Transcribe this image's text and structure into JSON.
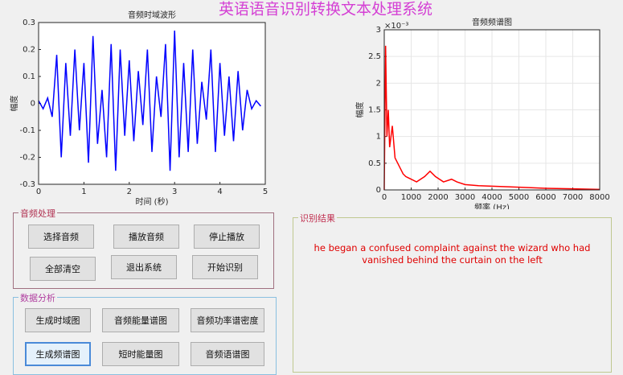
{
  "title": "英语语音识别转换文本处理系统",
  "chart_data": [
    {
      "type": "line",
      "title": "音频时域波形",
      "xlabel": "时间 (秒)",
      "ylabel": "幅度",
      "grid": false,
      "x": [
        0,
        0.1,
        0.2,
        0.3,
        0.4,
        0.5,
        0.6,
        0.7,
        0.8,
        0.9,
        1.0,
        1.1,
        1.2,
        1.3,
        1.4,
        1.5,
        1.6,
        1.7,
        1.8,
        1.9,
        2.0,
        2.1,
        2.2,
        2.3,
        2.4,
        2.5,
        2.6,
        2.7,
        2.8,
        2.9,
        3.0,
        3.1,
        3.2,
        3.3,
        3.4,
        3.5,
        3.6,
        3.7,
        3.8,
        3.9,
        4.0,
        4.1,
        4.2,
        4.3,
        4.4,
        4.5,
        4.6,
        4.7,
        4.8,
        4.9
      ],
      "series": [
        {
          "color": "#0000ff",
          "values": [
            0.01,
            -0.02,
            0.02,
            -0.05,
            0.18,
            -0.2,
            0.15,
            -0.12,
            0.2,
            -0.1,
            0.15,
            -0.22,
            0.25,
            -0.15,
            0.05,
            -0.2,
            0.22,
            -0.25,
            0.2,
            -0.12,
            0.16,
            -0.14,
            0.12,
            -0.08,
            0.2,
            -0.18,
            0.1,
            -0.05,
            0.22,
            -0.25,
            0.27,
            -0.2,
            0.15,
            -0.18,
            0.2,
            -0.15,
            0.08,
            -0.06,
            0.2,
            -0.18,
            0.15,
            -0.12,
            0.1,
            -0.14,
            0.12,
            -0.1,
            0.05,
            -0.02,
            0.01,
            -0.01
          ]
        }
      ],
      "xlim": [
        0,
        5
      ],
      "xticks": [
        0,
        1,
        2,
        3,
        4,
        5
      ],
      "ylim": [
        -0.3,
        0.3
      ],
      "yticks": [
        -0.3,
        -0.2,
        -0.1,
        0,
        0.1,
        0.2,
        0.3
      ]
    },
    {
      "type": "line",
      "title": "音频频谱图",
      "xlabel": "频率 (Hz)",
      "ylabel": "幅度",
      "grid": true,
      "y_multiplier": "×10⁻³",
      "x": [
        0,
        50,
        100,
        150,
        200,
        300,
        400,
        500,
        600,
        700,
        800,
        1000,
        1200,
        1500,
        1700,
        1900,
        2200,
        2500,
        2700,
        3000,
        3500,
        4000,
        4500,
        5000,
        6000,
        7000,
        8000
      ],
      "series": [
        {
          "color": "#ff0000",
          "values": [
            0,
            2.7,
            1.0,
            1.5,
            0.8,
            1.2,
            0.6,
            0.5,
            0.4,
            0.3,
            0.25,
            0.2,
            0.15,
            0.25,
            0.35,
            0.25,
            0.15,
            0.2,
            0.15,
            0.1,
            0.08,
            0.07,
            0.06,
            0.05,
            0.03,
            0.02,
            0.01
          ]
        }
      ],
      "xlim": [
        0,
        8000
      ],
      "xticks": [
        0,
        1000,
        2000,
        3000,
        4000,
        5000,
        6000,
        7000,
        8000
      ],
      "ylim": [
        0,
        3
      ],
      "yticks": [
        0,
        0.5,
        1,
        1.5,
        2,
        2.5,
        3
      ]
    }
  ],
  "panels": {
    "audio": {
      "title": "音频处理",
      "buttons": [
        "选择音频",
        "播放音频",
        "停止播放",
        "全部清空",
        "退出系统",
        "开始识别"
      ]
    },
    "analysis": {
      "title": "数据分析",
      "buttons": [
        "生成时域图",
        "音频能量谱图",
        "音频功率谱密度",
        "生成频谱图",
        "短时能量图",
        "音频语谱图"
      ]
    },
    "result": {
      "title": "识别结果",
      "lines": [
        "he began a confused complaint against the wizard who had",
        "vanished behind the curtain on the left"
      ]
    }
  }
}
